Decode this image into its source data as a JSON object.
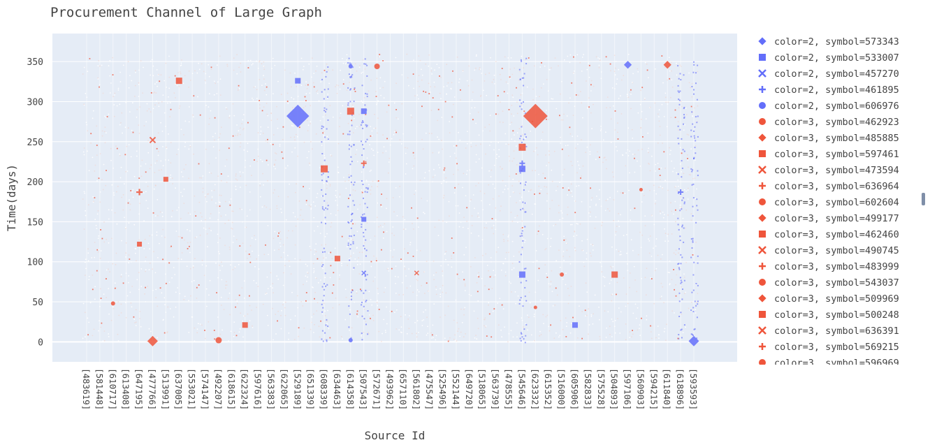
{
  "chart_data": {
    "type": "scatter",
    "title": "Procurement Channel of Large Graph",
    "xlabel": "Source Id",
    "ylabel": "Time(days)",
    "ylim": [
      -25,
      385
    ],
    "yticks": [
      0,
      50,
      100,
      150,
      200,
      250,
      300,
      350
    ],
    "grid": true,
    "legend_position": "right",
    "colors": {
      "color2": "#636efa",
      "color3": "#ef553b",
      "plot_bg": "#e5ecf6"
    },
    "categories": [
      "[483619]",
      "[581448]",
      "[610717]",
      "[613408]",
      "[647195]",
      "[477766]",
      "[513991]",
      "[637005]",
      "[553021]",
      "[574147]",
      "[492207]",
      "[618615]",
      "[622324]",
      "[597616]",
      "[563383]",
      "[622065]",
      "[529189]",
      "[651339]",
      "[608339]",
      "[634463]",
      "[614358]",
      "[507543]",
      "[572671]",
      "[493962]",
      "[657110]",
      "[561802]",
      "[475547]",
      "[525496]",
      "[552144]",
      "[649720]",
      "[518065]",
      "[563739]",
      "[478555]",
      "[545646]",
      "[623332]",
      "[615352]",
      "[516000]",
      "[605906]",
      "[582833]",
      "[575528]",
      "[504893]",
      "[597106]",
      "[560903]",
      "[594215]",
      "[611840]",
      "[618896]",
      "[593593]"
    ],
    "legend": [
      {
        "label": "color=2, symbol=573343",
        "color": "#636efa",
        "symbol": "diamond"
      },
      {
        "label": "color=2, symbol=533007",
        "color": "#636efa",
        "symbol": "square"
      },
      {
        "label": "color=2, symbol=457270",
        "color": "#636efa",
        "symbol": "x"
      },
      {
        "label": "color=2, symbol=461895",
        "color": "#636efa",
        "symbol": "cross"
      },
      {
        "label": "color=2, symbol=606976",
        "color": "#636efa",
        "symbol": "circle"
      },
      {
        "label": "color=3, symbol=462923",
        "color": "#ef553b",
        "symbol": "circle"
      },
      {
        "label": "color=3, symbol=485885",
        "color": "#ef553b",
        "symbol": "diamond"
      },
      {
        "label": "color=3, symbol=597461",
        "color": "#ef553b",
        "symbol": "square"
      },
      {
        "label": "color=3, symbol=473594",
        "color": "#ef553b",
        "symbol": "x"
      },
      {
        "label": "color=3, symbol=636964",
        "color": "#ef553b",
        "symbol": "cross"
      },
      {
        "label": "color=3, symbol=602604",
        "color": "#ef553b",
        "symbol": "circle"
      },
      {
        "label": "color=3, symbol=499177",
        "color": "#ef553b",
        "symbol": "diamond"
      },
      {
        "label": "color=3, symbol=462460",
        "color": "#ef553b",
        "symbol": "square"
      },
      {
        "label": "color=3, symbol=490745",
        "color": "#ef553b",
        "symbol": "x"
      },
      {
        "label": "color=3, symbol=483999",
        "color": "#ef553b",
        "symbol": "cross"
      },
      {
        "label": "color=3, symbol=543037",
        "color": "#ef553b",
        "symbol": "circle"
      },
      {
        "label": "color=3, symbol=509969",
        "color": "#ef553b",
        "symbol": "diamond"
      },
      {
        "label": "color=3, symbol=500248",
        "color": "#ef553b",
        "symbol": "square"
      },
      {
        "label": "color=3, symbol=636391",
        "color": "#ef553b",
        "symbol": "x"
      },
      {
        "label": "color=3, symbol=569215",
        "color": "#ef553b",
        "symbol": "cross"
      },
      {
        "label": "color=3, symbol=596969",
        "color": "#ef553b",
        "symbol": "circle"
      }
    ],
    "points": [
      {
        "x": "[529189]",
        "y": 282,
        "color": "color2",
        "symbol": "diamond",
        "size": 26
      },
      {
        "x": "[623332]",
        "y": 282,
        "color": "color3",
        "symbol": "diamond",
        "size": 28
      },
      {
        "x": "[477766]",
        "y": 1,
        "color": "color3",
        "symbol": "diamond",
        "size": 12
      },
      {
        "x": "[593593]",
        "y": 1,
        "color": "color2",
        "symbol": "diamond",
        "size": 12
      },
      {
        "x": "[597106]",
        "y": 346,
        "color": "color2",
        "symbol": "diamond",
        "size": 9
      },
      {
        "x": "[611840]",
        "y": 346,
        "color": "color3",
        "symbol": "diamond",
        "size": 9
      },
      {
        "x": "[492207]",
        "y": 2,
        "color": "color3",
        "symbol": "circle",
        "size": 9
      },
      {
        "x": "[572671]",
        "y": 344,
        "color": "color3",
        "symbol": "circle",
        "size": 8
      },
      {
        "x": "[614358]",
        "y": 344,
        "color": "color2",
        "symbol": "circle",
        "size": 6
      },
      {
        "x": "[610717]",
        "y": 48,
        "color": "color3",
        "symbol": "circle",
        "size": 6
      },
      {
        "x": "[516000]",
        "y": 84,
        "color": "color3",
        "symbol": "circle",
        "size": 6
      },
      {
        "x": "[623332]",
        "y": 43,
        "color": "color3",
        "symbol": "circle",
        "size": 5
      },
      {
        "x": "[560903]",
        "y": 190,
        "color": "color3",
        "symbol": "circle",
        "size": 5
      },
      {
        "x": "[614358]",
        "y": 2,
        "color": "color2",
        "symbol": "circle",
        "size": 6
      },
      {
        "x": "[637005]",
        "y": 326,
        "color": "color3",
        "symbol": "square",
        "size": 9
      },
      {
        "x": "[529189]",
        "y": 326,
        "color": "color2",
        "symbol": "square",
        "size": 8
      },
      {
        "x": "[608339]",
        "y": 216,
        "color": "color3",
        "symbol": "square",
        "size": 10
      },
      {
        "x": "[614358]",
        "y": 288,
        "color": "color3",
        "symbol": "square",
        "size": 10
      },
      {
        "x": "[545646]",
        "y": 243,
        "color": "color3",
        "symbol": "square",
        "size": 10
      },
      {
        "x": "[545646]",
        "y": 216,
        "color": "color2",
        "symbol": "square",
        "size": 9
      },
      {
        "x": "[545646]",
        "y": 84,
        "color": "color2",
        "symbol": "square",
        "size": 9
      },
      {
        "x": "[504893]",
        "y": 84,
        "color": "color3",
        "symbol": "square",
        "size": 9
      },
      {
        "x": "[622324]",
        "y": 21,
        "color": "color3",
        "symbol": "square",
        "size": 8
      },
      {
        "x": "[605906]",
        "y": 21,
        "color": "color2",
        "symbol": "square",
        "size": 8
      },
      {
        "x": "[634463]",
        "y": 104,
        "color": "color3",
        "symbol": "square",
        "size": 8
      },
      {
        "x": "[513991]",
        "y": 203,
        "color": "color3",
        "symbol": "square",
        "size": 7
      },
      {
        "x": "[647195]",
        "y": 122,
        "color": "color3",
        "symbol": "square",
        "size": 7
      },
      {
        "x": "[507543]",
        "y": 153,
        "color": "color2",
        "symbol": "square",
        "size": 7
      },
      {
        "x": "[507543]",
        "y": 288,
        "color": "color2",
        "symbol": "square",
        "size": 8
      },
      {
        "x": "[477766]",
        "y": 252,
        "color": "color3",
        "symbol": "x",
        "size": 8
      },
      {
        "x": "[507543]",
        "y": 86,
        "color": "color2",
        "symbol": "x",
        "size": 6
      },
      {
        "x": "[561802]",
        "y": 86,
        "color": "color3",
        "symbol": "x",
        "size": 6
      },
      {
        "x": "[647195]",
        "y": 187,
        "color": "color3",
        "symbol": "cross",
        "size": 9
      },
      {
        "x": "[507543]",
        "y": 223,
        "color": "color3",
        "symbol": "cross",
        "size": 8
      },
      {
        "x": "[545646]",
        "y": 223,
        "color": "color2",
        "symbol": "cross",
        "size": 8
      },
      {
        "x": "[618896]",
        "y": 187,
        "color": "color2",
        "symbol": "cross",
        "size": 8
      }
    ]
  }
}
